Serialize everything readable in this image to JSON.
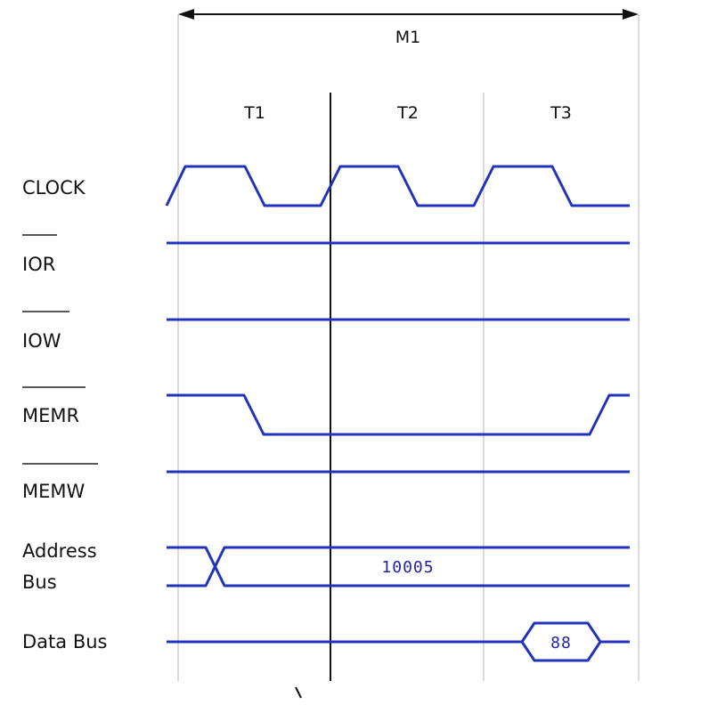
{
  "header": {
    "machine_cycle": "M1",
    "t_states": [
      "T1",
      "T2",
      "T3"
    ]
  },
  "signals": {
    "clock": "CLOCK",
    "ior": "IOR",
    "iow": "IOW",
    "memr": "MEMR",
    "memw": "MEMW",
    "address_bus_line1": "Address",
    "address_bus_line2": "Bus",
    "data_bus": "Data Bus"
  },
  "values": {
    "address": "10005",
    "data": "88"
  },
  "colors": {
    "signal": "#2233bb",
    "grid": "#cfcfcf"
  }
}
